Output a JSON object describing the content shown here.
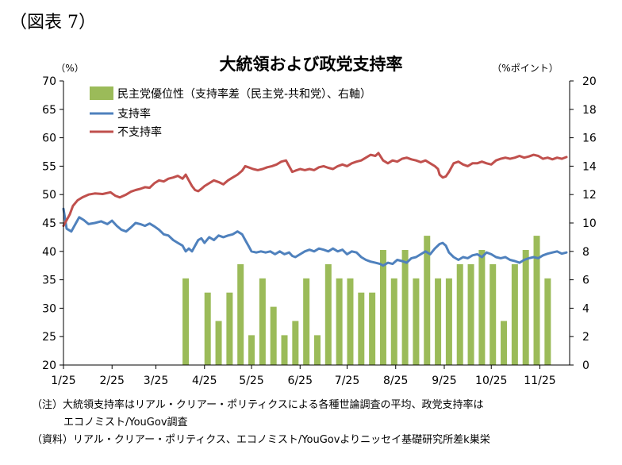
{
  "figure_label": "（図表 7）",
  "notes": {
    "line1": "（注）大統領支持率はリアル・クリアー・ポリティクスによる各種世論調査の平均、政党支持率は",
    "line2": "エコノミスト/YouGov調査",
    "source": "（資料）リアル・クリアー・ポリティクス、エコノミスト/YouGovよりニッセイ基礎研究所差k巣栄"
  },
  "chart_data": {
    "type": "bar+line",
    "title": "大統領および政党支持率",
    "left_unit": "（%）",
    "right_unit": "（%ポイント）",
    "ylim_left": [
      20,
      70
    ],
    "yticks_left": [
      "20",
      "25",
      "30",
      "35",
      "40",
      "45",
      "50",
      "55",
      "60",
      "65",
      "70"
    ],
    "ylim_right": [
      0,
      20
    ],
    "yticks_right": [
      "0",
      "2",
      "4",
      "6",
      "8",
      "10",
      "12",
      "14",
      "16",
      "18",
      "20"
    ],
    "xlim_days": [
      0,
      323
    ],
    "xticks": [
      {
        "label": "1/25",
        "day": 0
      },
      {
        "label": "2/25",
        "day": 31
      },
      {
        "label": "3/25",
        "day": 59
      },
      {
        "label": "4/25",
        "day": 90
      },
      {
        "label": "5/25",
        "day": 120
      },
      {
        "label": "6/25",
        "day": 151
      },
      {
        "label": "7/25",
        "day": 181
      },
      {
        "label": "8/25",
        "day": 212
      },
      {
        "label": "9/25",
        "day": 243
      },
      {
        "label": "10/25",
        "day": 273
      },
      {
        "label": "11/25",
        "day": 304
      }
    ],
    "grid": false,
    "legend_position": "top-left",
    "colors": {
      "bars": "#9bbb59",
      "approve": "#4f81bd",
      "disapprove": "#c0504d"
    },
    "legend": {
      "bars": "民主党優位性（支持率差（民主党-共和党）、右軸）",
      "approve": "支持率",
      "disapprove": "不支持率"
    },
    "bars": [
      {
        "x": 78,
        "value": 6.1
      },
      {
        "x": 92,
        "value": 5.1
      },
      {
        "x": 99,
        "value": 3.1
      },
      {
        "x": 106,
        "value": 5.1
      },
      {
        "x": 113,
        "value": 7.1
      },
      {
        "x": 120,
        "value": 2.1
      },
      {
        "x": 127,
        "value": 6.1
      },
      {
        "x": 134,
        "value": 4.1
      },
      {
        "x": 141,
        "value": 2.1
      },
      {
        "x": 148,
        "value": 3.1
      },
      {
        "x": 155,
        "value": 6.1
      },
      {
        "x": 162,
        "value": 2.1
      },
      {
        "x": 169,
        "value": 7.1
      },
      {
        "x": 176,
        "value": 6.1
      },
      {
        "x": 183,
        "value": 6.1
      },
      {
        "x": 190,
        "value": 5.1
      },
      {
        "x": 197,
        "value": 5.1
      },
      {
        "x": 204,
        "value": 8.1
      },
      {
        "x": 211,
        "value": 6.1
      },
      {
        "x": 218,
        "value": 8.1
      },
      {
        "x": 225,
        "value": 6.1
      },
      {
        "x": 232,
        "value": 9.1
      },
      {
        "x": 239,
        "value": 6.1
      },
      {
        "x": 246,
        "value": 6.1
      },
      {
        "x": 253,
        "value": 7.1
      },
      {
        "x": 260,
        "value": 7.1
      },
      {
        "x": 267,
        "value": 8.1
      },
      {
        "x": 274,
        "value": 7.1
      },
      {
        "x": 281,
        "value": 3.1
      },
      {
        "x": 288,
        "value": 7.1
      },
      {
        "x": 295,
        "value": 8.1
      },
      {
        "x": 302,
        "value": 9.1
      },
      {
        "x": 309,
        "value": 6.1
      }
    ],
    "series": [
      {
        "key": "approve",
        "points": [
          [
            0,
            47.5
          ],
          [
            2,
            44
          ],
          [
            5,
            43.5
          ],
          [
            8,
            45
          ],
          [
            10,
            46
          ],
          [
            13,
            45.5
          ],
          [
            16,
            44.8
          ],
          [
            20,
            45
          ],
          [
            24,
            45.3
          ],
          [
            28,
            44.8
          ],
          [
            31,
            45.4
          ],
          [
            34,
            44.5
          ],
          [
            37,
            43.8
          ],
          [
            40,
            43.5
          ],
          [
            43,
            44.2
          ],
          [
            46,
            45
          ],
          [
            49,
            44.8
          ],
          [
            52,
            44.5
          ],
          [
            55,
            44.9
          ],
          [
            58,
            44.4
          ],
          [
            61,
            43.8
          ],
          [
            64,
            43
          ],
          [
            67,
            42.8
          ],
          [
            70,
            42
          ],
          [
            73,
            41.5
          ],
          [
            76,
            41
          ],
          [
            78,
            40
          ],
          [
            80,
            40.5
          ],
          [
            82,
            40
          ],
          [
            84,
            41
          ],
          [
            86,
            42
          ],
          [
            88,
            42.3
          ],
          [
            90,
            41.5
          ],
          [
            93,
            42.5
          ],
          [
            96,
            42
          ],
          [
            99,
            42.8
          ],
          [
            102,
            42.5
          ],
          [
            105,
            42.8
          ],
          [
            108,
            43
          ],
          [
            111,
            43.5
          ],
          [
            114,
            43
          ],
          [
            116,
            42
          ],
          [
            118,
            41
          ],
          [
            120,
            40
          ],
          [
            123,
            39.8
          ],
          [
            126,
            40
          ],
          [
            129,
            39.8
          ],
          [
            132,
            40
          ],
          [
            135,
            39.5
          ],
          [
            138,
            40
          ],
          [
            141,
            39.5
          ],
          [
            144,
            39.8
          ],
          [
            146,
            39.2
          ],
          [
            148,
            39
          ],
          [
            151,
            39.5
          ],
          [
            154,
            40
          ],
          [
            157,
            40.3
          ],
          [
            160,
            40
          ],
          [
            163,
            40.5
          ],
          [
            166,
            40.3
          ],
          [
            169,
            40
          ],
          [
            172,
            40.5
          ],
          [
            175,
            40
          ],
          [
            178,
            40.3
          ],
          [
            181,
            39.5
          ],
          [
            184,
            40
          ],
          [
            187,
            39.8
          ],
          [
            190,
            39
          ],
          [
            193,
            38.5
          ],
          [
            196,
            38.2
          ],
          [
            199,
            38
          ],
          [
            202,
            37.8
          ],
          [
            204,
            37.5
          ],
          [
            207,
            38
          ],
          [
            210,
            37.8
          ],
          [
            213,
            38.5
          ],
          [
            216,
            38.3
          ],
          [
            219,
            38
          ],
          [
            222,
            38.8
          ],
          [
            225,
            39
          ],
          [
            228,
            39.5
          ],
          [
            231,
            40
          ],
          [
            234,
            39.5
          ],
          [
            237,
            40.5
          ],
          [
            240,
            41.3
          ],
          [
            242,
            41.5
          ],
          [
            244,
            41
          ],
          [
            246,
            39.8
          ],
          [
            249,
            39
          ],
          [
            252,
            38.5
          ],
          [
            255,
            39
          ],
          [
            258,
            38.8
          ],
          [
            261,
            39.3
          ],
          [
            264,
            39.5
          ],
          [
            267,
            39
          ],
          [
            270,
            39.8
          ],
          [
            273,
            39.5
          ],
          [
            276,
            39
          ],
          [
            279,
            38.8
          ],
          [
            282,
            39
          ],
          [
            285,
            38.5
          ],
          [
            288,
            38.3
          ],
          [
            291,
            38
          ],
          [
            294,
            38.5
          ],
          [
            297,
            38.8
          ],
          [
            300,
            39
          ],
          [
            303,
            38.8
          ],
          [
            306,
            39.3
          ],
          [
            309,
            39.6
          ],
          [
            312,
            39.8
          ],
          [
            315,
            40
          ],
          [
            318,
            39.6
          ],
          [
            321,
            39.8
          ]
        ]
      },
      {
        "key": "disapprove",
        "points": [
          [
            0,
            44.5
          ],
          [
            2,
            45.5
          ],
          [
            4,
            46.5
          ],
          [
            6,
            48
          ],
          [
            9,
            49
          ],
          [
            12,
            49.5
          ],
          [
            16,
            50
          ],
          [
            20,
            50.2
          ],
          [
            25,
            50.1
          ],
          [
            30,
            50.4
          ],
          [
            33,
            49.8
          ],
          [
            36,
            49.5
          ],
          [
            40,
            50
          ],
          [
            43,
            50.5
          ],
          [
            46,
            50.8
          ],
          [
            49,
            51
          ],
          [
            52,
            51.3
          ],
          [
            55,
            51.2
          ],
          [
            58,
            52
          ],
          [
            61,
            52.5
          ],
          [
            64,
            52.3
          ],
          [
            67,
            52.8
          ],
          [
            70,
            53
          ],
          [
            73,
            53.3
          ],
          [
            76,
            52.8
          ],
          [
            78,
            53.5
          ],
          [
            80,
            52.5
          ],
          [
            82,
            51.5
          ],
          [
            84,
            50.8
          ],
          [
            86,
            50.6
          ],
          [
            88,
            51
          ],
          [
            90,
            51.5
          ],
          [
            93,
            52
          ],
          [
            96,
            52.5
          ],
          [
            99,
            52.2
          ],
          [
            102,
            51.8
          ],
          [
            105,
            52.5
          ],
          [
            108,
            53
          ],
          [
            111,
            53.5
          ],
          [
            114,
            54.2
          ],
          [
            116,
            55
          ],
          [
            118,
            54.8
          ],
          [
            121,
            54.5
          ],
          [
            124,
            54.3
          ],
          [
            127,
            54.5
          ],
          [
            130,
            54.8
          ],
          [
            133,
            55
          ],
          [
            136,
            55.3
          ],
          [
            139,
            55.8
          ],
          [
            142,
            56
          ],
          [
            144,
            55
          ],
          [
            146,
            54
          ],
          [
            148,
            54.2
          ],
          [
            151,
            54.5
          ],
          [
            154,
            54.3
          ],
          [
            157,
            54.5
          ],
          [
            160,
            54.3
          ],
          [
            163,
            54.8
          ],
          [
            166,
            55
          ],
          [
            169,
            54.7
          ],
          [
            172,
            54.5
          ],
          [
            175,
            55
          ],
          [
            178,
            55.3
          ],
          [
            181,
            55
          ],
          [
            184,
            55.5
          ],
          [
            187,
            55.8
          ],
          [
            190,
            56
          ],
          [
            193,
            56.5
          ],
          [
            196,
            57
          ],
          [
            199,
            56.8
          ],
          [
            201,
            57.3
          ],
          [
            204,
            56
          ],
          [
            207,
            55.5
          ],
          [
            210,
            56
          ],
          [
            213,
            55.8
          ],
          [
            216,
            56.3
          ],
          [
            219,
            56.5
          ],
          [
            222,
            56.2
          ],
          [
            225,
            56
          ],
          [
            228,
            55.7
          ],
          [
            231,
            56
          ],
          [
            234,
            55.5
          ],
          [
            237,
            55
          ],
          [
            239,
            54.5
          ],
          [
            240,
            53.5
          ],
          [
            242,
            53
          ],
          [
            244,
            53.2
          ],
          [
            246,
            54
          ],
          [
            249,
            55.5
          ],
          [
            252,
            55.8
          ],
          [
            255,
            55.3
          ],
          [
            258,
            55
          ],
          [
            261,
            55.5
          ],
          [
            264,
            55.5
          ],
          [
            267,
            55.8
          ],
          [
            270,
            55.5
          ],
          [
            273,
            55.3
          ],
          [
            276,
            56
          ],
          [
            279,
            56.3
          ],
          [
            282,
            56.5
          ],
          [
            285,
            56.3
          ],
          [
            288,
            56.5
          ],
          [
            291,
            56.8
          ],
          [
            294,
            56.5
          ],
          [
            297,
            56.7
          ],
          [
            300,
            57
          ],
          [
            303,
            56.8
          ],
          [
            306,
            56.3
          ],
          [
            309,
            56.5
          ],
          [
            312,
            56.2
          ],
          [
            315,
            56.5
          ],
          [
            318,
            56.3
          ],
          [
            321,
            56.6
          ]
        ]
      }
    ]
  }
}
